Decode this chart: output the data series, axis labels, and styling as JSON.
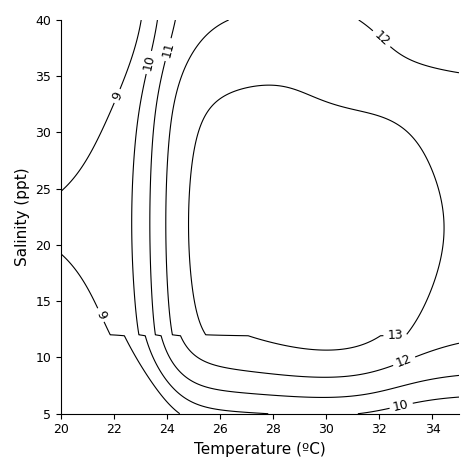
{
  "xlabel": "Temperature (ºC)",
  "ylabel": "Salinity (ppt)",
  "xlim": [
    20,
    35
  ],
  "ylim": [
    5,
    40
  ],
  "xticks": [
    20,
    22,
    24,
    26,
    28,
    30,
    32,
    34
  ],
  "yticks": [
    5,
    10,
    15,
    20,
    25,
    30,
    35,
    40
  ],
  "contour_levels": [
    9,
    10,
    11,
    12,
    13
  ],
  "contour_color": "black",
  "background_color": "white",
  "label_fontsize": 9,
  "axis_fontsize": 11
}
